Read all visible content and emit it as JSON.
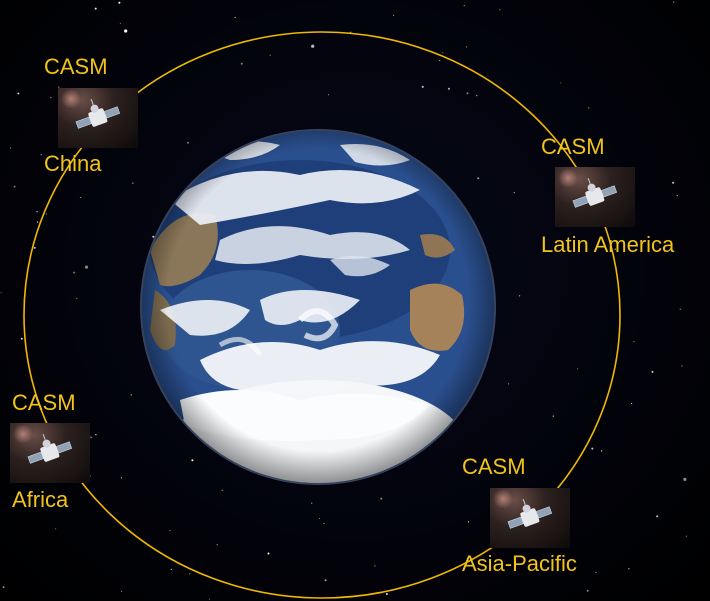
{
  "labels": {
    "china_casm": "CASM",
    "china_region": "China",
    "latin_casm": "CASM",
    "latin_region": "Latin America",
    "africa_casm": "CASM",
    "africa_region": "Africa",
    "asia_casm": "CASM",
    "asia_region": "Asia-Pacific"
  },
  "colors": {
    "orbit": "#f0b800",
    "label": "#f2c319",
    "space": "#000000"
  },
  "icons": {
    "satellite": "satellite-icon",
    "earth": "earth-globe"
  }
}
